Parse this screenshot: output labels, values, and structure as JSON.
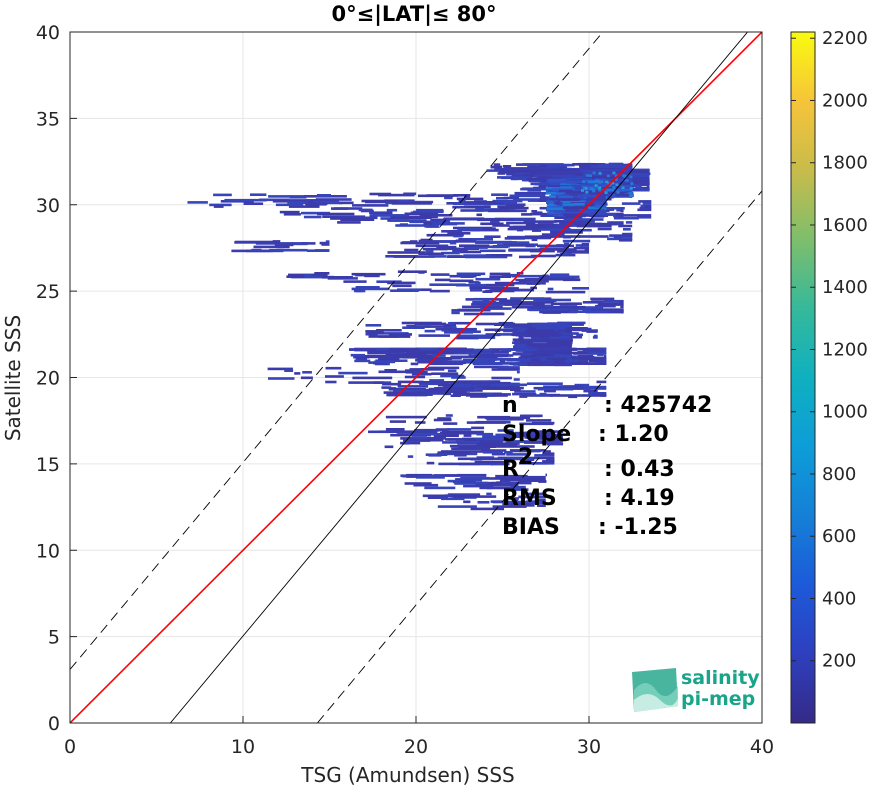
{
  "chart_data": {
    "type": "heatmap",
    "title": "0°≤|LAT|≤ 80°",
    "xlabel": "TSG (Amundsen) SSS",
    "ylabel": "Satellite SSS",
    "xlim": [
      0,
      40
    ],
    "ylim": [
      0,
      40
    ],
    "x_ticks": [
      "0",
      "10",
      "20",
      "30",
      "40"
    ],
    "y_ticks": [
      "0",
      "5",
      "10",
      "15",
      "20",
      "25",
      "30",
      "35",
      "40"
    ],
    "grid": true,
    "colorbar": {
      "range": [
        0,
        2220
      ],
      "ticks": [
        "200",
        "400",
        "600",
        "800",
        "1000",
        "1200",
        "1400",
        "1600",
        "1800",
        "2000",
        "2200"
      ],
      "colormap": "parula"
    },
    "lines": [
      {
        "name": "",
        "kind": "regression",
        "color": "#ff0000",
        "style": "solid",
        "points": [
          [
            0,
            0
          ],
          [
            40,
            40
          ]
        ]
      },
      {
        "name": "",
        "kind": "fit",
        "color": "#000000",
        "style": "solid",
        "points": [
          [
            5.8,
            0
          ],
          [
            40,
            41.0
          ]
        ]
      },
      {
        "name": "",
        "kind": "upper-bound",
        "color": "#000000",
        "style": "dashed",
        "points": [
          [
            0,
            3.1
          ],
          [
            30.8,
            40
          ]
        ]
      },
      {
        "name": "",
        "kind": "lower-bound",
        "color": "#000000",
        "style": "dashed",
        "points": [
          [
            14.3,
            0
          ],
          [
            40,
            30.8
          ]
        ]
      }
    ],
    "density_regions": [
      {
        "x0": 5.6,
        "x1": 33.6,
        "y": 30.3,
        "h": 0.15,
        "count": 60
      },
      {
        "x0": 12.0,
        "x1": 33.6,
        "y": 29.8,
        "h": 0.2,
        "count": 70
      },
      {
        "x0": 15.0,
        "x1": 32.0,
        "y": 29.3,
        "h": 0.15,
        "count": 50
      },
      {
        "x0": 20.0,
        "x1": 32.5,
        "y": 28.5,
        "h": 0.2,
        "count": 60
      },
      {
        "x0": 24.0,
        "x1": 32.5,
        "y": 32.0,
        "h": 0.15,
        "count": 120
      },
      {
        "x0": 26.0,
        "x1": 33.5,
        "y": 31.5,
        "h": 0.2,
        "count": 200
      },
      {
        "x0": 28.5,
        "x1": 32.5,
        "y": 31.0,
        "h": 0.15,
        "count": 600
      },
      {
        "x0": 9.2,
        "x1": 15.0,
        "y": 27.7,
        "h": 0.1,
        "count": 20
      },
      {
        "x0": 18.0,
        "x1": 30.0,
        "y": 27.5,
        "h": 0.15,
        "count": 60
      },
      {
        "x0": 12.0,
        "x1": 29.5,
        "y": 25.9,
        "h": 0.1,
        "count": 40
      },
      {
        "x0": 16.0,
        "x1": 30.0,
        "y": 25.3,
        "h": 0.1,
        "count": 30
      },
      {
        "x0": 22.0,
        "x1": 32.0,
        "y": 24.2,
        "h": 0.15,
        "count": 60
      },
      {
        "x0": 17.0,
        "x1": 30.5,
        "y": 22.8,
        "h": 0.15,
        "count": 60
      },
      {
        "x0": 16.0,
        "x1": 31.0,
        "y": 21.3,
        "h": 0.15,
        "count": 150
      },
      {
        "x0": 11.0,
        "x1": 26.0,
        "y": 20.1,
        "h": 0.2,
        "count": 40
      },
      {
        "x0": 18.0,
        "x1": 31.0,
        "y": 19.4,
        "h": 0.15,
        "count": 80
      },
      {
        "x0": 17.0,
        "x1": 28.0,
        "y": 17.3,
        "h": 0.2,
        "count": 40
      },
      {
        "x0": 18.0,
        "x1": 28.5,
        "y": 16.5,
        "h": 0.15,
        "count": 60
      },
      {
        "x0": 19.5,
        "x1": 28.0,
        "y": 15.5,
        "h": 0.15,
        "count": 40
      },
      {
        "x0": 19.0,
        "x1": 27.5,
        "y": 14.0,
        "h": 0.15,
        "count": 40
      },
      {
        "x0": 20.0,
        "x1": 27.5,
        "y": 12.9,
        "h": 0.15,
        "count": 30
      },
      {
        "x0": 25.5,
        "x1": 29.0,
        "y": 22.0,
        "h": 0.4,
        "count": 250
      },
      {
        "x0": 27.5,
        "x1": 31.0,
        "y": 30.5,
        "h": 0.35,
        "count": 500
      }
    ],
    "stats": [
      {
        "label": "n",
        "sup": "",
        "value": ": 425742"
      },
      {
        "label": "Slope",
        "sup": "",
        "value": ": 1.20"
      },
      {
        "label": "R",
        "sup": "2",
        "value": ": 0.43"
      },
      {
        "label": "RMS",
        "sup": "",
        "value": ": 4.19"
      },
      {
        "label": "BIAS",
        "sup": "",
        "value": ": -1.25"
      }
    ]
  },
  "logo": {
    "line1": "salinity",
    "line2": "pi-mep"
  },
  "colors": {
    "accent": "#1aa58a",
    "regression": "#ff0000"
  }
}
